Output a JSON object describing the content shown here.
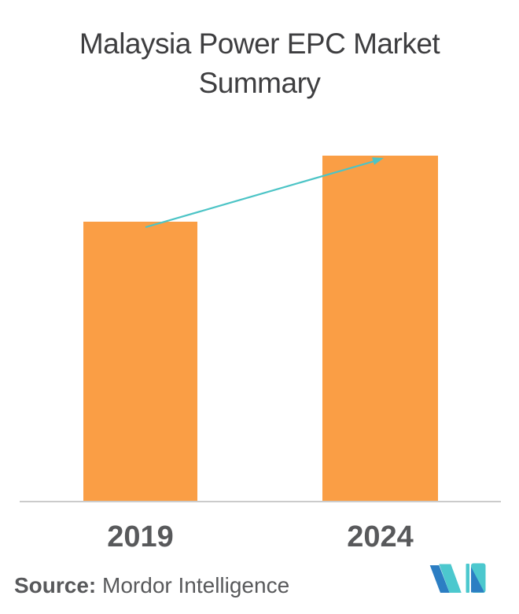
{
  "title": "Malaysia Power EPC Market Summary",
  "source": {
    "prefix": "Source:",
    "name": " Mordor Intelligence"
  },
  "logo": {
    "name": "mordor-intelligence-logo"
  },
  "colors": {
    "background": "#FFFFFF",
    "bar": "#FA9E45",
    "arrow": "#4CC4C6",
    "axis": "#CBCBCB",
    "title_text": "#3E3E40",
    "label_text": "#58595B",
    "source_text": "#58595B",
    "logo_blue": "#2C7EC3",
    "logo_teal": "#4CC8CE"
  },
  "chart_data": {
    "type": "bar",
    "title": "Malaysia Power EPC Market Summary",
    "categories": [
      "2019",
      "2024"
    ],
    "values": [
      81,
      100
    ],
    "value_scale": "relative bar heights; no numeric axis or data labels shown",
    "xlabel": "",
    "ylabel": "",
    "grid": false,
    "legend": false,
    "annotations": [
      "teal growth arrow from top of 2019 bar to top of 2024 bar"
    ]
  }
}
